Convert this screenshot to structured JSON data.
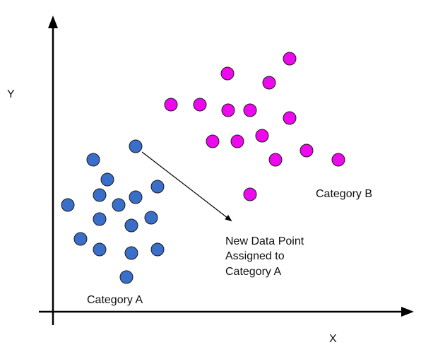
{
  "colors": {
    "background": "#ffffff",
    "axis": "#000000",
    "category_a_fill": "#3a6fc9",
    "category_b_fill": "#ee08ee",
    "point_stroke": "#1a1a1a"
  },
  "axes": {
    "x_label": "X",
    "y_label": "Y"
  },
  "labels": {
    "category_a": "Category A",
    "category_b": "Category B",
    "annotation_line1": "New Data Point",
    "annotation_line2": "Assigned to",
    "annotation_line3": "Category A"
  },
  "icons": {
    "annotation_arrow": "arrow-icon"
  }
}
